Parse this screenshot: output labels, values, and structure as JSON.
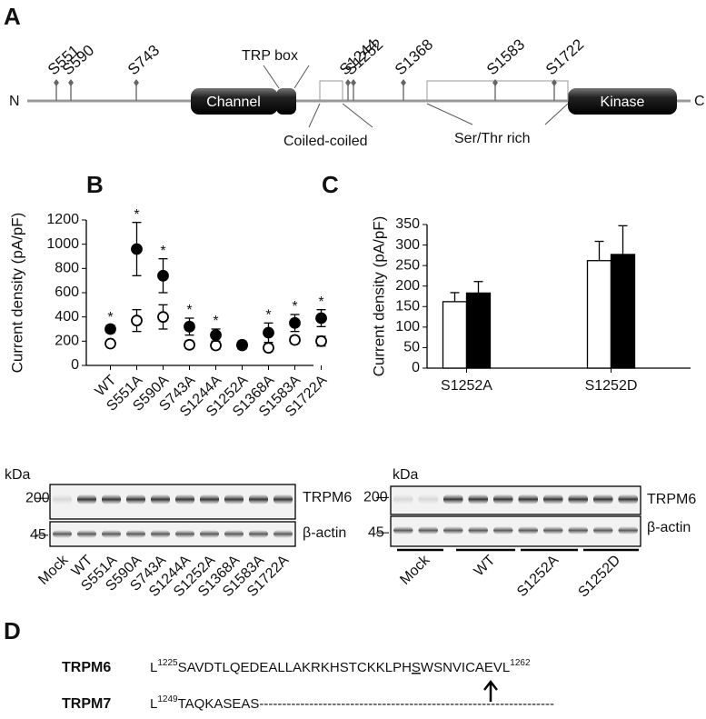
{
  "panel_a": {
    "letter": "A",
    "n_label": "N",
    "c_label": "C",
    "domains": [
      "Channel",
      "Kinase"
    ],
    "sites": [
      "S551",
      "S590",
      "S743",
      "S1244",
      "S1252",
      "S1368",
      "S1583",
      "S1722"
    ],
    "annotations": [
      "TRP box",
      "Coiled-coiled",
      "Ser/Thr rich"
    ]
  },
  "chart_data": [
    {
      "type": "dot",
      "panel": "B",
      "ylabel": "Current density (pA/pF)",
      "categories": [
        "WT",
        "S551A",
        "S590A",
        "S743A",
        "S1244A",
        "S1252A",
        "S1368A",
        "S1583A",
        "S1722A"
      ],
      "series": [
        {
          "color": "#000000",
          "fill": "#ffffff",
          "values": [
            180,
            370,
            400,
            170,
            165,
            170,
            145,
            210,
            200
          ],
          "errors": [
            20,
            90,
            100,
            30,
            30,
            30,
            30,
            30,
            40
          ]
        },
        {
          "color": "#000000",
          "fill": "#000000",
          "values": [
            300,
            960,
            740,
            320,
            250,
            165,
            270,
            350,
            390
          ],
          "errors": [
            30,
            220,
            140,
            70,
            50,
            30,
            80,
            70,
            70
          ]
        }
      ],
      "significance": [
        "*",
        "*",
        "*",
        "*",
        "*",
        null,
        "*",
        "*",
        "*"
      ],
      "ylim": [
        0,
        1200
      ],
      "yticks": [
        0,
        200,
        400,
        600,
        800,
        1000,
        1200
      ]
    },
    {
      "type": "bar",
      "panel": "C",
      "ylabel": "Current density (pA/pF)",
      "categories": [
        "S1252A",
        "S1252D"
      ],
      "series": [
        {
          "color": "#000000",
          "fill": "#ffffff",
          "values": [
            162,
            262
          ],
          "errors": [
            22,
            47
          ]
        },
        {
          "color": "#000000",
          "fill": "#000000",
          "values": [
            183,
            277
          ],
          "errors": [
            28,
            70
          ]
        }
      ],
      "ylim": [
        0,
        350
      ],
      "yticks": [
        0,
        50,
        100,
        150,
        200,
        250,
        300,
        350
      ]
    }
  ],
  "blots": [
    {
      "unit": "kDa",
      "markers": [
        "200",
        "45"
      ],
      "targets": [
        "TRPM6",
        "β-actin"
      ],
      "lanes": [
        "Mock",
        "WT",
        "S551A",
        "S590A",
        "S743A",
        "S1244A",
        "S1252A",
        "S1368A",
        "S1583A",
        "S1722A"
      ]
    },
    {
      "unit": "kDa",
      "markers": [
        "200",
        "45"
      ],
      "targets": [
        "TRPM6",
        "β-actin"
      ],
      "lanes": [
        "Mock",
        "WT",
        "S1252A",
        "S1252D"
      ]
    }
  ],
  "panel_d": {
    "letter": "D",
    "rows": [
      {
        "name": "TRPM6",
        "start": "L",
        "start_no": "1225",
        "seq": "SAVDTLQEDEALLAKRKHSTCKKLPH",
        "site": "S",
        "rest": "WSNVICAEVL",
        "end_no": "1262"
      },
      {
        "name": "TRPM7",
        "start": "L",
        "start_no": "1249",
        "seq": "TAQKASEAS",
        "rest": "-----------------------------------------------------------------"
      }
    ]
  }
}
